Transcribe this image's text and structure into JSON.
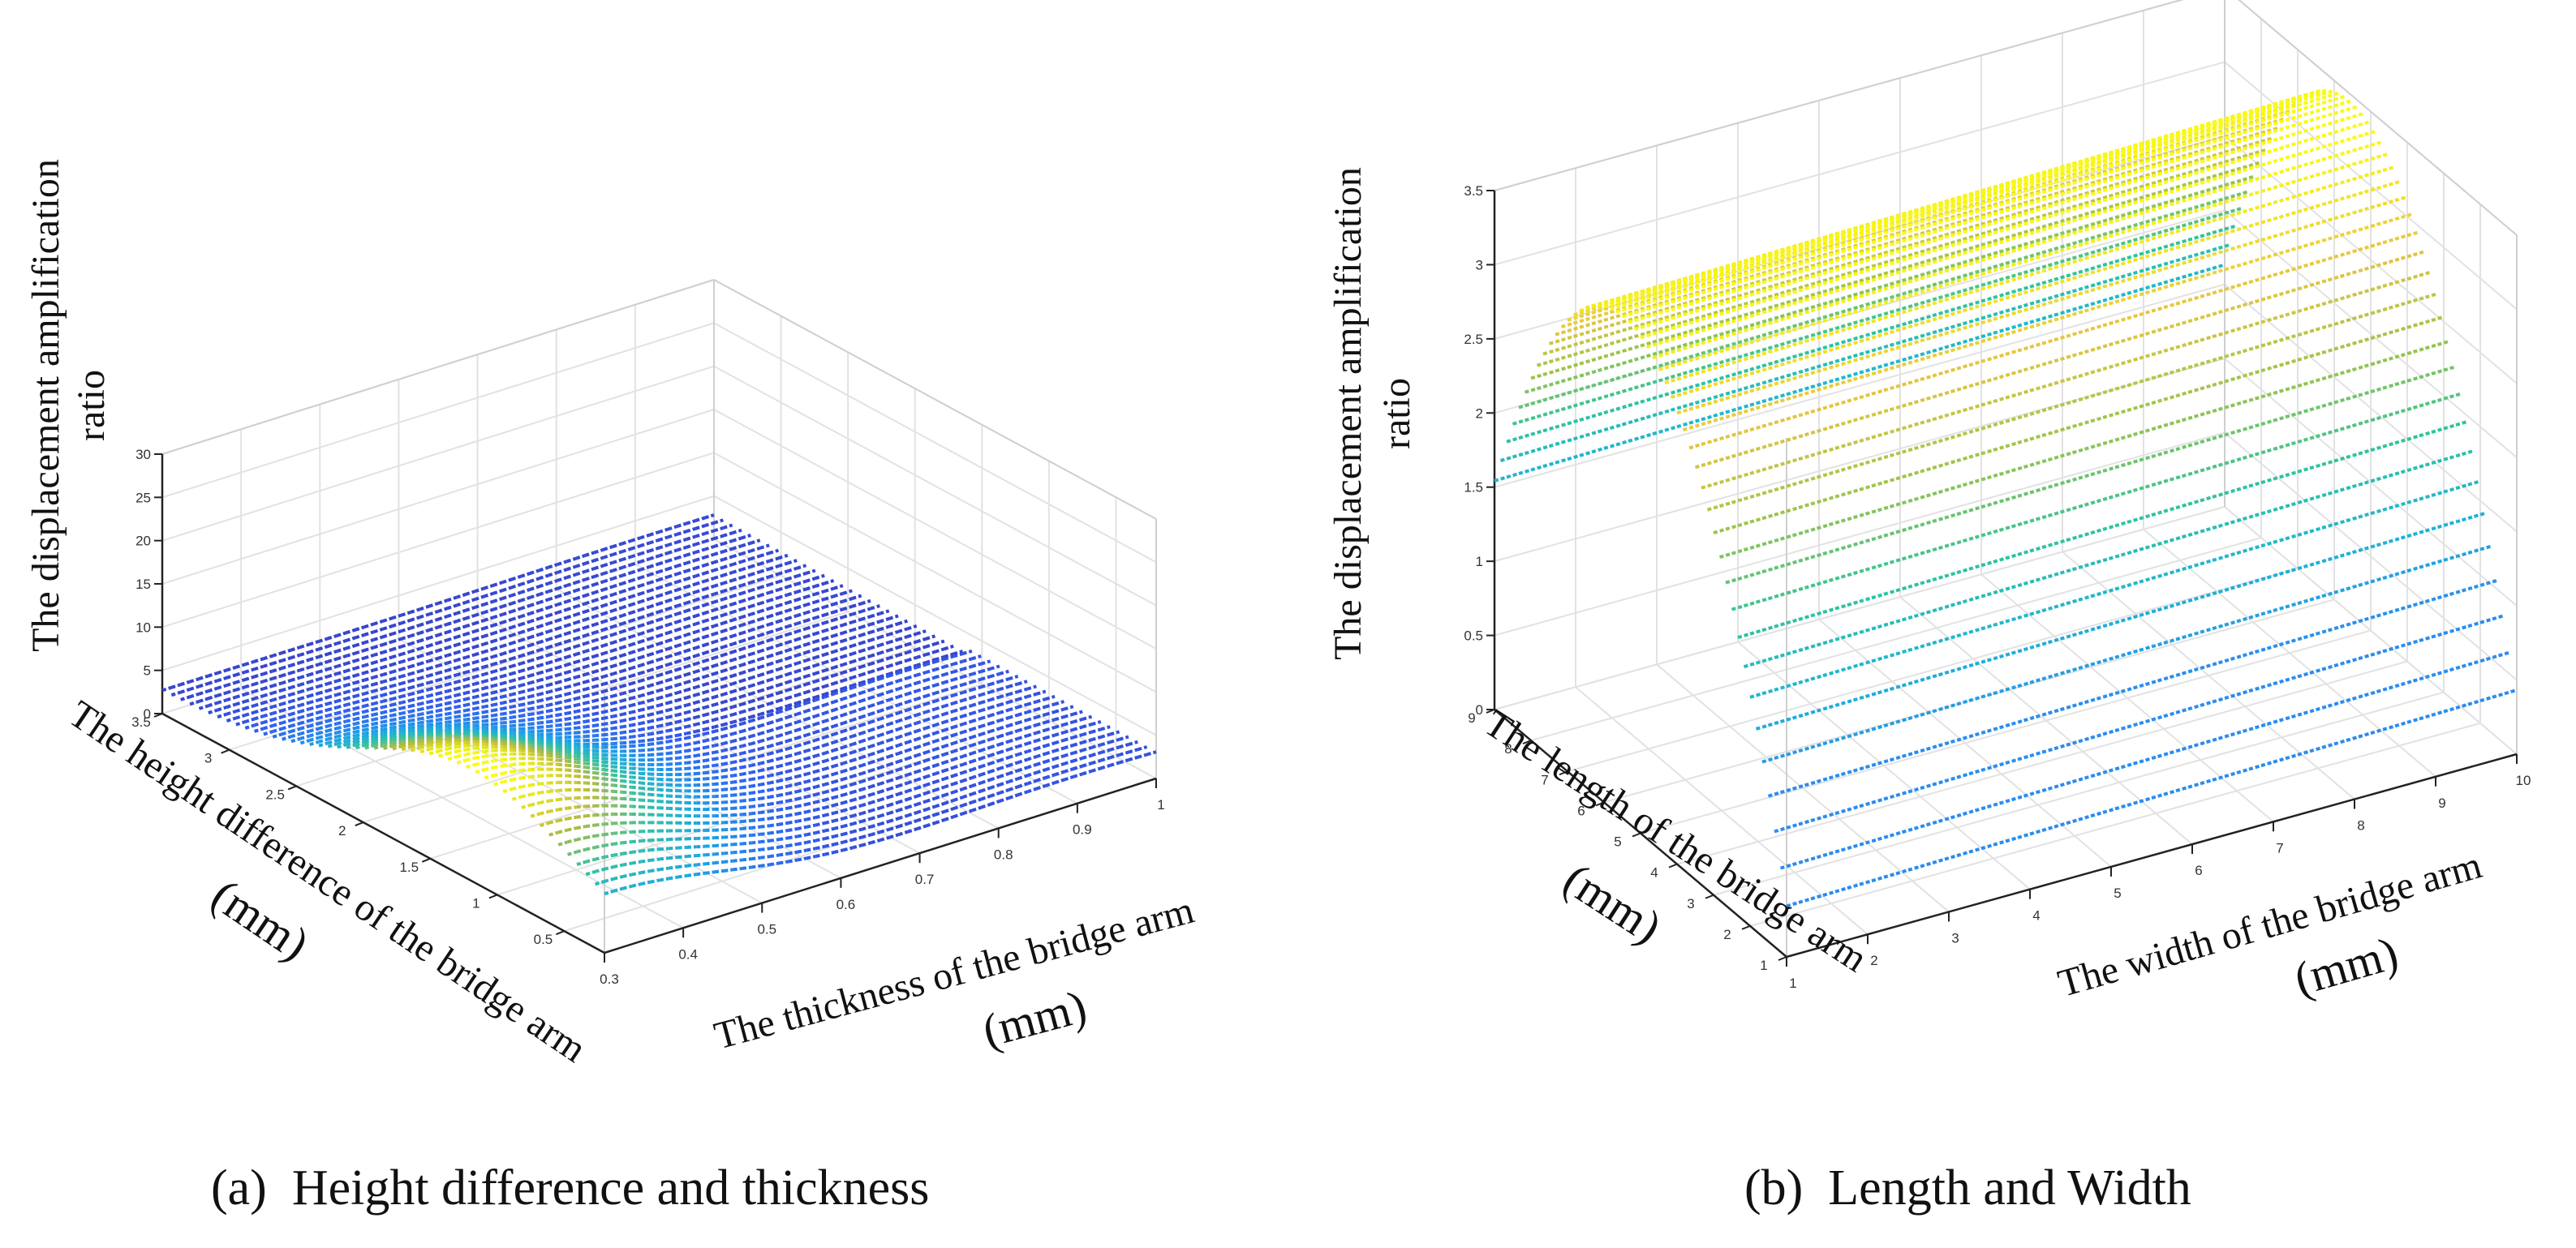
{
  "chart_data": [
    {
      "type": "surface",
      "panel": "(a)",
      "caption": "Height difference and thickness",
      "zlabel_line1": "The displacement amplification",
      "zlabel_line2": "ratio",
      "xlabel": "The thickness of the bridge arm",
      "xunit": "(mm)",
      "ylabel": "The height difference of the bridge arm",
      "yunit": "(mm)",
      "x_ticks": [
        "0.3",
        "0.4",
        "0.5",
        "0.6",
        "0.7",
        "0.8",
        "0.9",
        "1"
      ],
      "y_ticks": [
        "0.5",
        "1",
        "1.5",
        "2",
        "2.5",
        "3",
        "3.5"
      ],
      "z_ticks": [
        "0",
        "5",
        "10",
        "15",
        "20",
        "25",
        "30"
      ],
      "xlim": [
        0.3,
        1.0
      ],
      "ylim": [
        0.2,
        3.5
      ],
      "zlim": [
        0,
        30
      ],
      "grid": true,
      "colormap": [
        "#3e26a8",
        "#2f5ff0",
        "#1aa6e6",
        "#33c1a3",
        "#bbbb3a",
        "#f9fb14"
      ],
      "surface_model": "peak near thickness 0.3 and small height difference (~13); ~2-3 over most of the domain"
    },
    {
      "type": "surface",
      "panel": "(b)",
      "caption": "Length and Width",
      "zlabel_line1": "The displacement amplification",
      "zlabel_line2": "ratio",
      "xlabel": "The width of the bridge arm",
      "xunit": "(mm)",
      "ylabel": "The length of the bridge arm",
      "yunit": "(mm)",
      "x_ticks": [
        "1",
        "2",
        "3",
        "4",
        "5",
        "6",
        "7",
        "8",
        "9",
        "10"
      ],
      "y_ticks": [
        "1",
        "2",
        "3",
        "4",
        "5",
        "6",
        "7",
        "8",
        "9"
      ],
      "z_ticks": [
        "0",
        "0.5",
        "1",
        "1.5",
        "2",
        "2.5",
        "3",
        "3.5"
      ],
      "xlim": [
        1,
        10
      ],
      "ylim": [
        1,
        9
      ],
      "zlim": [
        0,
        3.5
      ],
      "grid": true,
      "colormap": [
        "#2a8cf0",
        "#1cb4d6",
        "#2fc49a",
        "#9cc44a",
        "#e5c640",
        "#f9fb14"
      ],
      "surface_model": "nearly independent of width; parabolic in length with max ~3.4 at length ~5, ~2.7 at length 9, ~1 at length 1"
    }
  ]
}
